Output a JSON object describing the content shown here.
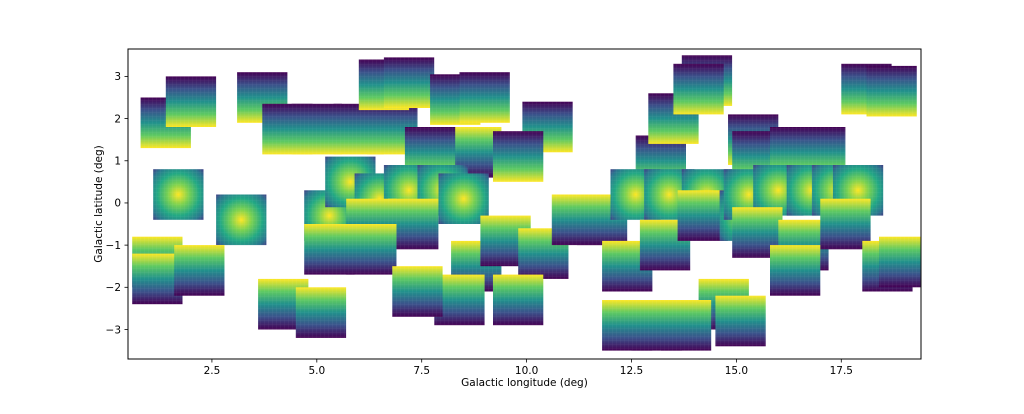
{
  "chart_data": {
    "type": "heatmap",
    "title": "",
    "xlabel": "Galactic longitude (deg)",
    "ylabel": "Galactic latitude (deg)",
    "xlim": [
      0.5,
      19.4
    ],
    "ylim": [
      -3.7,
      3.65
    ],
    "xticks": [
      2.5,
      5.0,
      7.5,
      10.0,
      12.5,
      15.0,
      17.5
    ],
    "xtick_labels": [
      "2.5",
      "5.0",
      "7.5",
      "10.0",
      "12.5",
      "15.0",
      "17.5"
    ],
    "yticks": [
      -3,
      -2,
      -1,
      0,
      1,
      2,
      3
    ],
    "ytick_labels": [
      "−3",
      "−2",
      "−1",
      "0",
      "1",
      "2",
      "3"
    ],
    "grid": false,
    "colormap": "viridis",
    "tile_size_deg": [
      1.2,
      1.2
    ],
    "tiles": [
      {
        "l": 1.4,
        "b": 1.9,
        "p": "grad-up"
      },
      {
        "l": 2.0,
        "b": 2.4,
        "p": "grad-up"
      },
      {
        "l": 3.7,
        "b": 2.5,
        "p": "grad-up"
      },
      {
        "l": 5.0,
        "b": 1.75,
        "p": "grad-up"
      },
      {
        "l": 4.3,
        "b": 1.75,
        "p": "grad-up"
      },
      {
        "l": 6.0,
        "b": 1.75,
        "p": "grad-up"
      },
      {
        "l": 6.8,
        "b": 1.75,
        "p": "grad-up"
      },
      {
        "l": 6.6,
        "b": 2.8,
        "p": "grad-up"
      },
      {
        "l": 7.2,
        "b": 2.85,
        "p": "grad-up"
      },
      {
        "l": 8.3,
        "b": 2.45,
        "p": "grad-up"
      },
      {
        "l": 9.0,
        "b": 2.5,
        "p": "grad-up"
      },
      {
        "l": 10.5,
        "b": 1.8,
        "p": "grad-up"
      },
      {
        "l": 8.8,
        "b": 1.2,
        "p": "grad-down"
      },
      {
        "l": 9.8,
        "b": 1.1,
        "p": "grad-up"
      },
      {
        "l": 7.7,
        "b": 1.2,
        "p": "grad-up"
      },
      {
        "l": 13.2,
        "b": 1.0,
        "p": "grad-up"
      },
      {
        "l": 13.5,
        "b": 2.0,
        "p": "grad-up"
      },
      {
        "l": 14.3,
        "b": 2.9,
        "p": "grad-up"
      },
      {
        "l": 14.1,
        "b": 2.7,
        "p": "grad-up"
      },
      {
        "l": 15.4,
        "b": 1.5,
        "p": "grad-up"
      },
      {
        "l": 15.5,
        "b": 1.1,
        "p": "grad-up"
      },
      {
        "l": 16.4,
        "b": 1.2,
        "p": "grad-up"
      },
      {
        "l": 17.0,
        "b": 1.2,
        "p": "grad-up"
      },
      {
        "l": 18.1,
        "b": 2.7,
        "p": "grad-up"
      },
      {
        "l": 18.7,
        "b": 2.65,
        "p": "grad-up"
      },
      {
        "l": 1.7,
        "b": 0.2,
        "p": "blob"
      },
      {
        "l": 3.2,
        "b": -0.4,
        "p": "blob"
      },
      {
        "l": 5.3,
        "b": -0.3,
        "p": "blob"
      },
      {
        "l": 5.8,
        "b": 0.5,
        "p": "blob"
      },
      {
        "l": 6.5,
        "b": 0.1,
        "p": "blob"
      },
      {
        "l": 7.2,
        "b": 0.3,
        "p": "blob"
      },
      {
        "l": 8.0,
        "b": 0.3,
        "p": "blob"
      },
      {
        "l": 8.5,
        "b": 0.1,
        "p": "blob"
      },
      {
        "l": 6.3,
        "b": -0.5,
        "p": "grad-down"
      },
      {
        "l": 7.3,
        "b": -0.5,
        "p": "grad-down"
      },
      {
        "l": 5.3,
        "b": -1.1,
        "p": "grad-down"
      },
      {
        "l": 6.3,
        "b": -1.1,
        "p": "grad-down"
      },
      {
        "l": 8.8,
        "b": -1.5,
        "p": "grad-down"
      },
      {
        "l": 9.5,
        "b": -0.9,
        "p": "grad-down"
      },
      {
        "l": 10.4,
        "b": -1.2,
        "p": "grad-down"
      },
      {
        "l": 11.2,
        "b": -0.4,
        "p": "grad-down"
      },
      {
        "l": 9.8,
        "b": -2.3,
        "p": "grad-down"
      },
      {
        "l": 8.4,
        "b": -2.3,
        "p": "grad-down"
      },
      {
        "l": 7.4,
        "b": -2.1,
        "p": "grad-down"
      },
      {
        "l": 4.2,
        "b": -2.4,
        "p": "grad-down"
      },
      {
        "l": 5.1,
        "b": -2.6,
        "p": "grad-down"
      },
      {
        "l": 1.2,
        "b": -1.4,
        "p": "grad-down"
      },
      {
        "l": 1.2,
        "b": -1.8,
        "p": "grad-down"
      },
      {
        "l": 2.2,
        "b": -1.6,
        "p": "grad-down"
      },
      {
        "l": 11.8,
        "b": -0.4,
        "p": "grad-down"
      },
      {
        "l": 12.4,
        "b": -1.5,
        "p": "grad-down"
      },
      {
        "l": 12.6,
        "b": 0.2,
        "p": "blob"
      },
      {
        "l": 13.4,
        "b": 0.2,
        "p": "blob"
      },
      {
        "l": 14.3,
        "b": 0.2,
        "p": "blob"
      },
      {
        "l": 13.3,
        "b": -1.0,
        "p": "grad-down"
      },
      {
        "l": 14.2,
        "b": -0.3,
        "p": "grad-down"
      },
      {
        "l": 15.2,
        "b": -0.3,
        "p": "blob"
      },
      {
        "l": 15.3,
        "b": 0.2,
        "p": "blob"
      },
      {
        "l": 16.0,
        "b": 0.3,
        "p": "blob"
      },
      {
        "l": 16.8,
        "b": 0.3,
        "p": "blob"
      },
      {
        "l": 17.4,
        "b": 0.3,
        "p": "blob"
      },
      {
        "l": 17.9,
        "b": 0.3,
        "p": "blob"
      },
      {
        "l": 15.5,
        "b": -0.7,
        "p": "grad-down"
      },
      {
        "l": 16.6,
        "b": -1.0,
        "p": "grad-down"
      },
      {
        "l": 17.6,
        "b": -0.5,
        "p": "grad-down"
      },
      {
        "l": 16.4,
        "b": -1.6,
        "p": "grad-down"
      },
      {
        "l": 18.6,
        "b": -1.5,
        "p": "grad-down"
      },
      {
        "l": 19.0,
        "b": -1.4,
        "p": "grad-down"
      },
      {
        "l": 14.7,
        "b": -2.4,
        "p": "grad-down"
      },
      {
        "l": 15.1,
        "b": -2.8,
        "p": "grad-down"
      },
      {
        "l": 12.4,
        "b": -2.9,
        "p": "grad-down"
      },
      {
        "l": 13.1,
        "b": -2.9,
        "p": "grad-down"
      },
      {
        "l": 13.8,
        "b": -2.9,
        "p": "grad-down"
      }
    ]
  }
}
